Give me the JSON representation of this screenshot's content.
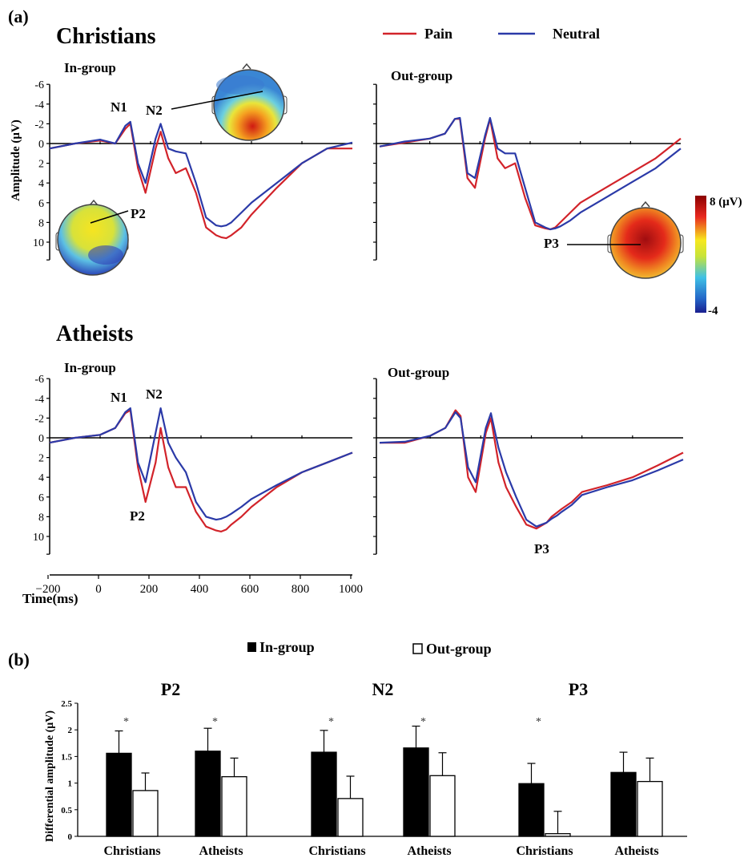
{
  "panel_a_label": "(a)",
  "panel_b_label": "(b)",
  "legend_a": {
    "pain": "Pain",
    "neutral": "Neutral",
    "pain_color": "#d2232a",
    "neutral_color": "#2b3aa8"
  },
  "y_axis_label_a": "Amplitude (μV)",
  "x_axis_label_a": "Time(ms)",
  "x_ticks_a": [
    "−200",
    "0",
    "200",
    "400",
    "600",
    "800",
    "1000"
  ],
  "y_ticks_a": [
    "-6",
    "-4",
    "-2",
    "0",
    "2",
    "4",
    "6",
    "8",
    "10"
  ],
  "colorbar": {
    "max_label": "8 (μV)",
    "min_label": "-4"
  },
  "groups_a": [
    {
      "title": "Christians",
      "panels": [
        {
          "label": "In-group",
          "components": [
            {
              "name": "N1"
            },
            {
              "name": "N2"
            },
            {
              "name": "P2"
            }
          ]
        },
        {
          "label": "Out-group",
          "components": [
            {
              "name": "P3"
            }
          ]
        }
      ]
    },
    {
      "title": "Atheists",
      "panels": [
        {
          "label": "In-group",
          "components": [
            {
              "name": "N1"
            },
            {
              "name": "N2"
            },
            {
              "name": "P2"
            }
          ]
        },
        {
          "label": "Out-group",
          "components": [
            {
              "name": "P3"
            }
          ]
        }
      ]
    }
  ],
  "legend_b": {
    "in_group": "In-group",
    "out_group": "Out-group"
  },
  "y_axis_label_b": "Differential amplitude  (μV)",
  "y_ticks_b": [
    "0",
    "0.5",
    "1",
    "1.5",
    "2",
    "2.5"
  ],
  "chart_data": [
    {
      "type": "line",
      "title": "Christians In-group",
      "xlabel": "Time(ms)",
      "ylabel": "Amplitude (μV)",
      "xlim": [
        -200,
        1000
      ],
      "ylim": [
        -6,
        10
      ],
      "y_inverted": true,
      "series": [
        {
          "name": "Pain",
          "x": [
            -200,
            -100,
            0,
            60,
            100,
            120,
            150,
            180,
            220,
            240,
            270,
            300,
            340,
            380,
            420,
            460,
            480,
            500,
            520,
            560,
            600,
            700,
            800,
            900,
            1000
          ],
          "y": [
            0.5,
            0.0,
            -0.3,
            0,
            -1.5,
            -2.0,
            2.5,
            5.0,
            0.5,
            -1.2,
            1.5,
            3.0,
            2.5,
            5.0,
            8.5,
            9.3,
            9.5,
            9.6,
            9.3,
            8.5,
            7.2,
            4.5,
            2.0,
            0.5,
            0.5
          ]
        },
        {
          "name": "Neutral",
          "x": [
            -200,
            -100,
            0,
            60,
            100,
            120,
            150,
            180,
            220,
            240,
            270,
            300,
            340,
            380,
            420,
            460,
            480,
            500,
            520,
            560,
            600,
            700,
            800,
            900,
            1000
          ],
          "y": [
            0.5,
            0.0,
            -0.4,
            0,
            -1.8,
            -2.2,
            2.0,
            4.0,
            -0.5,
            -2.0,
            0.5,
            0.8,
            1.0,
            4.0,
            7.5,
            8.3,
            8.4,
            8.3,
            8.0,
            7.0,
            6.0,
            4.0,
            2.0,
            0.5,
            -0.1
          ]
        }
      ]
    },
    {
      "type": "line",
      "title": "Christians Out-group",
      "xlim": [
        -200,
        1000
      ],
      "ylim": [
        -6,
        10
      ],
      "y_inverted": true,
      "series": [
        {
          "name": "Pain",
          "x": [
            -200,
            -100,
            0,
            60,
            100,
            120,
            150,
            180,
            220,
            240,
            270,
            300,
            340,
            380,
            420,
            460,
            480,
            500,
            520,
            560,
            600,
            700,
            800,
            900,
            1000
          ],
          "y": [
            0.3,
            -0.1,
            -0.5,
            -1.0,
            -2.5,
            -2.5,
            3.5,
            4.5,
            -0.5,
            -2.5,
            1.5,
            2.5,
            2.0,
            5.5,
            8.3,
            8.6,
            8.7,
            8.5,
            8.0,
            7.0,
            6.0,
            4.5,
            3.0,
            1.5,
            -0.5
          ]
        },
        {
          "name": "Neutral",
          "x": [
            -200,
            -100,
            0,
            60,
            100,
            120,
            150,
            180,
            220,
            240,
            270,
            300,
            340,
            380,
            420,
            460,
            480,
            500,
            520,
            560,
            600,
            700,
            800,
            900,
            1000
          ],
          "y": [
            0.3,
            -0.2,
            -0.5,
            -1.0,
            -2.5,
            -2.6,
            3.0,
            3.5,
            -0.8,
            -2.6,
            0.5,
            1.0,
            1.0,
            4.5,
            8.0,
            8.5,
            8.7,
            8.6,
            8.4,
            7.8,
            7.0,
            5.5,
            4.0,
            2.5,
            0.5
          ]
        }
      ]
    },
    {
      "type": "line",
      "title": "Atheists In-group",
      "xlim": [
        -200,
        1000
      ],
      "ylim": [
        -6,
        10
      ],
      "y_inverted": true,
      "series": [
        {
          "name": "Pain",
          "x": [
            -200,
            -100,
            0,
            60,
            100,
            120,
            150,
            180,
            220,
            240,
            270,
            300,
            340,
            380,
            420,
            460,
            480,
            500,
            520,
            560,
            600,
            700,
            800,
            900,
            1000
          ],
          "y": [
            0.5,
            0.0,
            -0.3,
            -1.0,
            -2.5,
            -2.8,
            3.0,
            6.5,
            2.5,
            -1.0,
            3.0,
            5.0,
            5.0,
            7.5,
            9.0,
            9.4,
            9.5,
            9.3,
            8.8,
            8.0,
            7.0,
            5.0,
            3.5,
            2.5,
            1.5
          ]
        },
        {
          "name": "Neutral",
          "x": [
            -200,
            -100,
            0,
            60,
            100,
            120,
            150,
            180,
            220,
            240,
            270,
            300,
            340,
            380,
            420,
            460,
            480,
            500,
            520,
            560,
            600,
            700,
            800,
            900,
            1000
          ],
          "y": [
            0.5,
            0.0,
            -0.3,
            -1.0,
            -2.6,
            -3.0,
            2.5,
            4.5,
            -0.5,
            -3.0,
            0.5,
            2.0,
            3.5,
            6.5,
            8.0,
            8.3,
            8.2,
            8.0,
            7.7,
            7.0,
            6.2,
            4.8,
            3.5,
            2.5,
            1.5
          ]
        }
      ]
    },
    {
      "type": "line",
      "title": "Atheists Out-group",
      "xlim": [
        -200,
        1000
      ],
      "ylim": [
        -6,
        10
      ],
      "y_inverted": true,
      "series": [
        {
          "name": "Pain",
          "x": [
            -200,
            -100,
            0,
            60,
            100,
            120,
            150,
            180,
            220,
            240,
            270,
            300,
            340,
            380,
            420,
            460,
            480,
            500,
            520,
            560,
            600,
            700,
            800,
            900,
            1000
          ],
          "y": [
            0.5,
            0.5,
            -0.2,
            -1.0,
            -2.8,
            -2.2,
            4.0,
            5.5,
            -0.5,
            -2.0,
            2.5,
            5.0,
            7.0,
            8.8,
            9.2,
            8.6,
            8.0,
            7.6,
            7.2,
            6.5,
            5.5,
            4.8,
            4.0,
            2.8,
            1.5
          ]
        },
        {
          "name": "Neutral",
          "x": [
            -200,
            -100,
            0,
            60,
            100,
            120,
            150,
            180,
            220,
            240,
            270,
            300,
            340,
            380,
            420,
            460,
            480,
            500,
            520,
            560,
            600,
            700,
            800,
            900,
            1000
          ],
          "y": [
            0.5,
            0.4,
            -0.2,
            -1.0,
            -2.6,
            -2.0,
            3.0,
            4.5,
            -1.0,
            -2.5,
            1.0,
            3.5,
            6.0,
            8.3,
            9.0,
            8.6,
            8.2,
            7.9,
            7.5,
            6.8,
            5.8,
            5.0,
            4.3,
            3.3,
            2.2
          ]
        }
      ]
    },
    {
      "type": "bar",
      "title": "P2",
      "categories": [
        "Christians",
        "Atheists"
      ],
      "series": [
        {
          "name": "In-group",
          "values": [
            1.56,
            1.6
          ],
          "errors": [
            0.42,
            0.43
          ]
        },
        {
          "name": "Out-group",
          "values": [
            0.86,
            1.12
          ],
          "errors": [
            0.33,
            0.35
          ]
        }
      ],
      "significance": [
        "*",
        "*"
      ],
      "ylabel": "Differential amplitude  (μV)",
      "ylim": [
        0,
        2.5
      ]
    },
    {
      "type": "bar",
      "title": "N2",
      "categories": [
        "Christians",
        "Atheists"
      ],
      "series": [
        {
          "name": "In-group",
          "values": [
            1.58,
            1.66
          ],
          "errors": [
            0.41,
            0.41
          ]
        },
        {
          "name": "Out-group",
          "values": [
            0.71,
            1.14
          ],
          "errors": [
            0.42,
            0.43
          ]
        }
      ],
      "significance": [
        "*",
        "*"
      ],
      "ylim": [
        0,
        2.5
      ]
    },
    {
      "type": "bar",
      "title": "P3",
      "categories": [
        "Christians",
        "Atheists"
      ],
      "series": [
        {
          "name": "In-group",
          "values": [
            0.99,
            1.2
          ],
          "errors": [
            0.38,
            0.38
          ]
        },
        {
          "name": "Out-group",
          "values": [
            0.05,
            1.03
          ],
          "errors": [
            0.42,
            0.44
          ]
        }
      ],
      "significance": [
        "*",
        ""
      ],
      "ylim": [
        0,
        2.5
      ]
    }
  ]
}
